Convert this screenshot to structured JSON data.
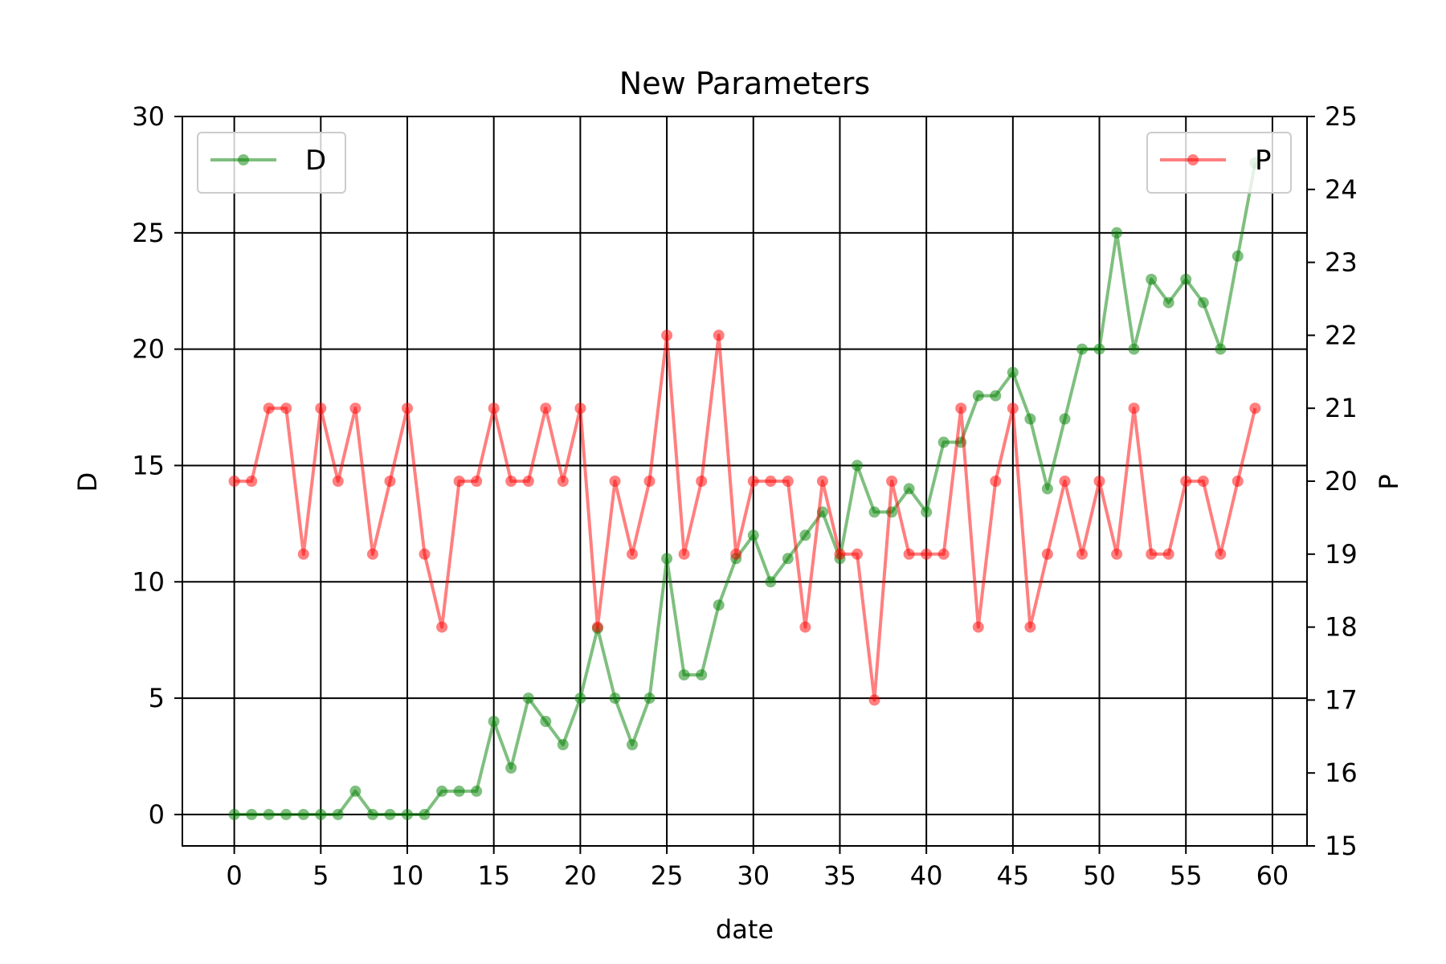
{
  "chart_data": {
    "type": "line",
    "title": "New Parameters",
    "xlabel": "date",
    "ylabel_left": "D",
    "ylabel_right": "P",
    "xlim": [
      -3,
      62
    ],
    "ylim_left": [
      -1.35,
      30
    ],
    "ylim_right": [
      15,
      25
    ],
    "xticks": [
      0,
      5,
      10,
      15,
      20,
      25,
      30,
      35,
      40,
      45,
      50,
      55,
      60
    ],
    "yticks_left": [
      0,
      5,
      10,
      15,
      20,
      25,
      30
    ],
    "yticks_right": [
      15,
      16,
      17,
      18,
      19,
      20,
      21,
      22,
      23,
      24,
      25
    ],
    "grid": true,
    "x": [
      0,
      1,
      2,
      3,
      4,
      5,
      6,
      7,
      8,
      9,
      10,
      11,
      12,
      13,
      14,
      15,
      16,
      17,
      18,
      19,
      20,
      21,
      22,
      23,
      24,
      25,
      26,
      27,
      28,
      29,
      30,
      31,
      32,
      33,
      34,
      35,
      36,
      37,
      38,
      39,
      40,
      41,
      42,
      43,
      44,
      45,
      46,
      47,
      48,
      49,
      50,
      51,
      52,
      53,
      54,
      55,
      56,
      57,
      58,
      59
    ],
    "series": [
      {
        "name": "D",
        "axis": "left",
        "color": "#008000",
        "legend_loc": "upper-left",
        "values": [
          0,
          0,
          0,
          0,
          0,
          0,
          0,
          1,
          0,
          0,
          0,
          0,
          1,
          1,
          1,
          4,
          2,
          5,
          4,
          3,
          5,
          8,
          5,
          3,
          5,
          11,
          6,
          6,
          9,
          11,
          12,
          10,
          11,
          12,
          13,
          11,
          15,
          13,
          13,
          14,
          13,
          16,
          16,
          18,
          18,
          19,
          17,
          14,
          17,
          20,
          20,
          25,
          20,
          23,
          22,
          23,
          22,
          20,
          24,
          28
        ]
      },
      {
        "name": "P",
        "axis": "right",
        "color": "#ff0000",
        "legend_loc": "upper-right",
        "values": [
          20,
          20,
          21,
          21,
          19,
          21,
          20,
          21,
          19,
          20,
          21,
          19,
          18,
          20,
          20,
          21,
          20,
          20,
          21,
          20,
          21,
          18,
          20,
          19,
          20,
          22,
          19,
          20,
          22,
          19,
          20,
          20,
          20,
          18,
          20,
          19,
          19,
          17,
          20,
          19,
          19,
          19,
          21,
          18,
          20,
          21,
          18,
          19,
          20,
          19,
          20,
          19,
          21,
          19,
          19,
          20,
          20,
          19,
          20,
          21
        ]
      }
    ]
  }
}
